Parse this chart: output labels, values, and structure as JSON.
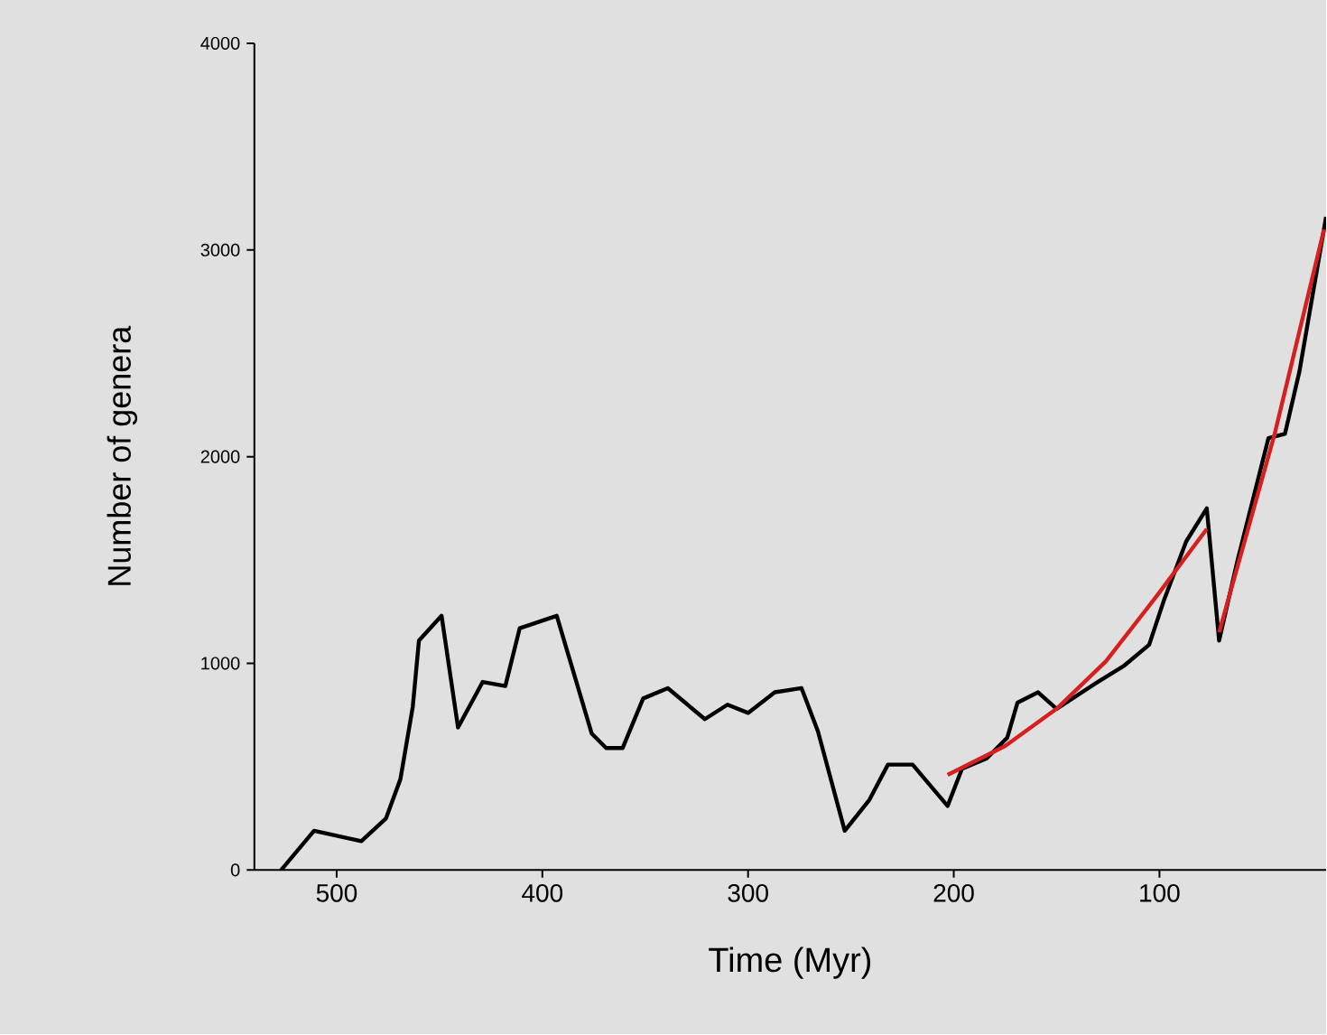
{
  "chart_data": {
    "type": "line",
    "xlabel": "Time (Myr)",
    "ylabel": "Number of genera",
    "xlim": [
      540,
      19
    ],
    "xticks": [
      500,
      400,
      300,
      200,
      100
    ],
    "ylim": [
      0,
      4000
    ],
    "yticks": [
      0,
      1000,
      2000,
      3000,
      4000
    ],
    "grid": false,
    "marker": "none",
    "line_style": "solid",
    "series": [
      {
        "color": "#000000",
        "x": [
          527,
          511,
          488,
          476,
          469,
          463,
          460,
          449,
          441,
          429,
          418,
          411,
          393,
          376,
          369,
          361,
          351,
          339,
          321,
          310,
          300,
          287,
          274,
          266,
          253,
          241,
          232,
          220,
          203,
          196,
          184,
          174,
          169,
          159,
          150,
          130,
          117,
          105,
          98,
          87,
          77,
          71,
          62,
          47,
          39,
          32,
          19
        ],
        "values": [
          0,
          190,
          140,
          250,
          440,
          790,
          1110,
          1230,
          690,
          910,
          890,
          1170,
          1230,
          660,
          590,
          590,
          830,
          880,
          730,
          800,
          760,
          860,
          880,
          670,
          190,
          340,
          510,
          510,
          310,
          490,
          540,
          640,
          810,
          860,
          780,
          910,
          990,
          1090,
          1300,
          1590,
          1750,
          1110,
          1500,
          2090,
          2110,
          2410,
          3160
        ]
      },
      {
        "color": "#d62020",
        "x": [
          203,
          175,
          150,
          126,
          101,
          77
        ],
        "values": [
          460,
          600,
          780,
          1010,
          1330,
          1650
        ]
      },
      {
        "color": "#d62020",
        "x": [
          71,
          44,
          20
        ],
        "values": [
          1150,
          2110,
          3100
        ]
      }
    ]
  }
}
